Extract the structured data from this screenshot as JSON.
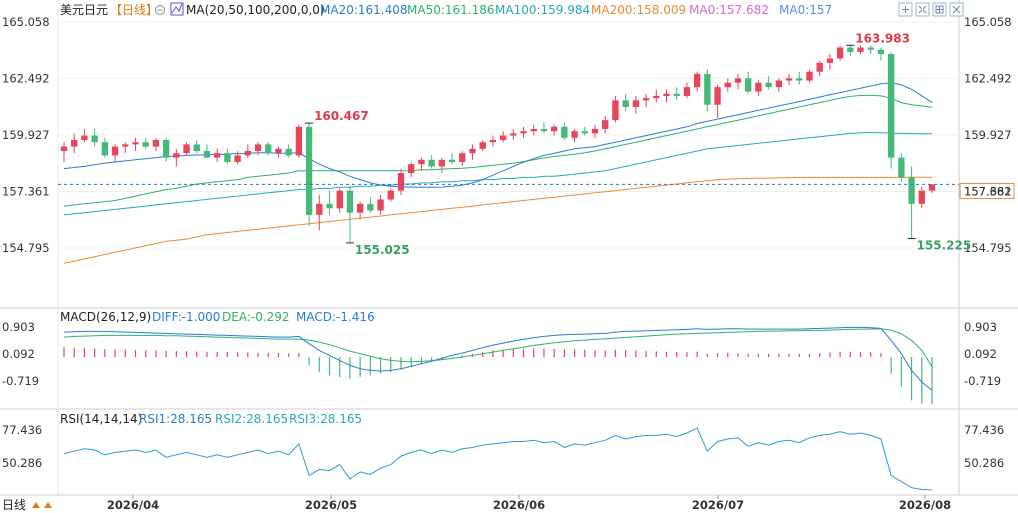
{
  "header": {
    "symbol": "美元日元",
    "period": "【日线】",
    "ma_params": "MA(20,50,100,200,0,0)",
    "ma_values": [
      {
        "label": "MA20:161.408",
        "color": "#2a7bd8"
      },
      {
        "label": "MA50:161.186",
        "color": "#2fb26a"
      },
      {
        "label": "MA100:159.984",
        "color": "#28a9b5"
      },
      {
        "label": "MA200:158.009",
        "color": "#f08a34"
      },
      {
        "label": "MA0:157.682",
        "color": "#d36bd3"
      },
      {
        "label": "MA0:157",
        "color": "#5a8fe0"
      }
    ]
  },
  "toolbar": [
    "expand-icon",
    "shrink-icon",
    "grid-icon",
    "close-icon"
  ],
  "price_axis": {
    "ticks": [
      "165.058",
      "162.492",
      "159.927",
      "157.361",
      "154.795"
    ],
    "current": "157.682"
  },
  "annotations": {
    "high": "163.983",
    "high_left": "160.467",
    "low_left": "155.025",
    "low_right": "155.225"
  },
  "macd": {
    "label": "MACD(26,12,9)",
    "diff": "DIFF:-1.000",
    "dea": "DEA:-0.292",
    "macd": "MACD:-1.416",
    "ticks": [
      "0.903",
      "0.092",
      "-0.719"
    ]
  },
  "rsi": {
    "label": "RSI(14,14,14)",
    "r1": "RSI1:28.165",
    "r2": "RSI2:28.165",
    "r3": "RSI3:28.165",
    "ticks": [
      "77.436",
      "50.286"
    ]
  },
  "x_axis": {
    "labels": [
      "2026/04",
      "2026/05",
      "2026/06",
      "2026/07",
      "2026/08"
    ],
    "period_button": "日线"
  },
  "chart_data": {
    "type": "candlestick",
    "y_range": [
      154.0,
      165.5
    ],
    "candles": [
      [
        159.2,
        159.6,
        158.7,
        159.4
      ],
      [
        159.4,
        160.0,
        159.1,
        159.7
      ],
      [
        159.7,
        160.2,
        159.6,
        159.9
      ],
      [
        159.9,
        160.2,
        159.4,
        159.6
      ],
      [
        159.6,
        159.8,
        158.9,
        159.0
      ],
      [
        159.0,
        159.5,
        158.7,
        159.4
      ],
      [
        159.4,
        159.6,
        159.1,
        159.5
      ],
      [
        159.5,
        159.8,
        159.2,
        159.6
      ],
      [
        159.6,
        159.8,
        159.3,
        159.4
      ],
      [
        159.4,
        159.8,
        159.2,
        159.7
      ],
      [
        159.7,
        159.8,
        158.7,
        158.9
      ],
      [
        158.9,
        159.3,
        158.5,
        159.1
      ],
      [
        159.1,
        159.6,
        159.0,
        159.5
      ],
      [
        159.5,
        159.7,
        159.1,
        159.2
      ],
      [
        159.2,
        159.5,
        158.9,
        158.9
      ],
      [
        158.9,
        159.3,
        158.7,
        159.1
      ],
      [
        159.1,
        159.3,
        158.6,
        158.7
      ],
      [
        158.7,
        159.2,
        158.6,
        159.0
      ],
      [
        159.0,
        159.5,
        158.9,
        159.2
      ],
      [
        159.2,
        159.6,
        159.0,
        159.5
      ],
      [
        159.5,
        159.6,
        159.0,
        159.1
      ],
      [
        159.1,
        159.4,
        158.9,
        159.3
      ],
      [
        159.3,
        159.5,
        158.9,
        159.0
      ],
      [
        159.0,
        160.4,
        158.9,
        160.3
      ],
      [
        160.3,
        160.467,
        155.8,
        156.3
      ],
      [
        156.3,
        157.2,
        155.6,
        156.8
      ],
      [
        156.8,
        157.4,
        156.3,
        156.6
      ],
      [
        156.6,
        157.5,
        156.4,
        157.4
      ],
      [
        157.4,
        157.6,
        155.025,
        156.4
      ],
      [
        156.4,
        156.9,
        156.1,
        156.8
      ],
      [
        156.8,
        157.1,
        156.4,
        156.5
      ],
      [
        156.5,
        157.2,
        156.3,
        157.0
      ],
      [
        157.0,
        157.5,
        156.9,
        157.4
      ],
      [
        157.4,
        158.4,
        157.2,
        158.2
      ],
      [
        158.2,
        158.7,
        158.0,
        158.6
      ],
      [
        158.6,
        158.9,
        158.3,
        158.8
      ],
      [
        158.8,
        159.0,
        158.4,
        158.5
      ],
      [
        158.5,
        158.9,
        158.2,
        158.8
      ],
      [
        158.8,
        159.1,
        158.6,
        158.7
      ],
      [
        158.7,
        159.2,
        158.5,
        159.1
      ],
      [
        159.1,
        159.5,
        158.8,
        159.3
      ],
      [
        159.3,
        159.7,
        159.2,
        159.6
      ],
      [
        159.6,
        159.9,
        159.4,
        159.7
      ],
      [
        159.7,
        160.1,
        159.6,
        159.9
      ],
      [
        159.9,
        160.2,
        159.7,
        160.0
      ],
      [
        160.0,
        160.3,
        159.8,
        160.1
      ],
      [
        160.1,
        160.4,
        159.9,
        160.2
      ],
      [
        160.2,
        160.5,
        160.0,
        160.1
      ],
      [
        160.1,
        160.4,
        159.9,
        160.3
      ],
      [
        160.3,
        160.5,
        159.7,
        159.8
      ],
      [
        159.8,
        160.2,
        159.6,
        160.1
      ],
      [
        160.1,
        160.3,
        159.9,
        160.0
      ],
      [
        160.0,
        160.4,
        159.8,
        160.2
      ],
      [
        160.2,
        160.8,
        160.0,
        160.6
      ],
      [
        160.6,
        161.7,
        160.5,
        161.5
      ],
      [
        161.5,
        161.8,
        161.0,
        161.2
      ],
      [
        161.2,
        161.7,
        160.9,
        161.5
      ],
      [
        161.5,
        161.8,
        161.2,
        161.6
      ],
      [
        161.6,
        162.0,
        161.4,
        161.7
      ],
      [
        161.7,
        162.0,
        161.4,
        161.8
      ],
      [
        161.8,
        162.1,
        161.5,
        161.7
      ],
      [
        161.7,
        162.3,
        161.6,
        162.1
      ],
      [
        162.1,
        162.8,
        161.9,
        162.7
      ],
      [
        162.7,
        162.9,
        161.0,
        161.3
      ],
      [
        161.3,
        162.2,
        160.7,
        162.1
      ],
      [
        162.1,
        162.5,
        161.9,
        162.3
      ],
      [
        162.3,
        162.7,
        162.0,
        162.5
      ],
      [
        162.5,
        162.8,
        161.8,
        161.9
      ],
      [
        161.9,
        162.4,
        161.7,
        162.3
      ],
      [
        162.3,
        162.6,
        162.0,
        162.1
      ],
      [
        162.1,
        162.5,
        161.9,
        162.4
      ],
      [
        162.4,
        162.7,
        162.2,
        162.5
      ],
      [
        162.5,
        162.8,
        162.2,
        162.4
      ],
      [
        162.4,
        162.9,
        162.3,
        162.8
      ],
      [
        162.8,
        163.3,
        162.6,
        163.2
      ],
      [
        163.2,
        163.6,
        162.9,
        163.4
      ],
      [
        163.4,
        163.983,
        163.3,
        163.9
      ],
      [
        163.9,
        164.0,
        163.5,
        163.7
      ],
      [
        163.7,
        164.0,
        163.6,
        163.9
      ],
      [
        163.9,
        164.0,
        163.6,
        163.8
      ],
      [
        163.8,
        163.9,
        163.3,
        163.6
      ],
      [
        163.6,
        163.7,
        158.4,
        158.9
      ],
      [
        158.9,
        159.1,
        157.8,
        158.0
      ],
      [
        158.0,
        158.5,
        155.225,
        156.8
      ],
      [
        156.8,
        157.6,
        156.6,
        157.4
      ],
      [
        157.4,
        157.7,
        157.3,
        157.682
      ]
    ],
    "ma20": [
      158.4,
      158.45,
      158.5,
      158.58,
      158.65,
      158.7,
      158.75,
      158.8,
      158.85,
      158.9,
      158.95,
      158.97,
      159.0,
      159.02,
      159.03,
      159.04,
      159.06,
      159.08,
      159.1,
      159.12,
      159.12,
      159.1,
      159.1,
      159.12,
      158.85,
      158.6,
      158.4,
      158.25,
      158.05,
      157.9,
      157.75,
      157.65,
      157.6,
      157.58,
      157.56,
      157.55,
      157.55,
      157.56,
      157.6,
      157.65,
      157.75,
      157.9,
      158.1,
      158.3,
      158.5,
      158.7,
      158.85,
      159.0,
      159.1,
      159.2,
      159.3,
      159.35,
      159.4,
      159.5,
      159.6,
      159.7,
      159.8,
      159.9,
      160.0,
      160.1,
      160.2,
      160.3,
      160.45,
      160.55,
      160.65,
      160.75,
      160.85,
      160.95,
      161.05,
      161.15,
      161.25,
      161.35,
      161.45,
      161.55,
      161.65,
      161.75,
      161.85,
      161.95,
      162.05,
      162.15,
      162.25,
      162.3,
      162.2,
      162.0,
      161.7,
      161.408
    ],
    "ma50": [
      156.7,
      156.75,
      156.8,
      156.85,
      156.9,
      156.95,
      157.05,
      157.15,
      157.25,
      157.35,
      157.45,
      157.5,
      157.6,
      157.7,
      157.75,
      157.8,
      157.85,
      157.9,
      158.0,
      158.05,
      158.1,
      158.15,
      158.2,
      158.3,
      158.3,
      158.3,
      158.3,
      158.3,
      158.3,
      158.3,
      158.3,
      158.3,
      158.3,
      158.3,
      158.3,
      158.35,
      158.35,
      158.38,
      158.4,
      158.42,
      158.45,
      158.5,
      158.55,
      158.6,
      158.65,
      158.72,
      158.8,
      158.88,
      158.95,
      159.0,
      159.05,
      159.12,
      159.2,
      159.3,
      159.4,
      159.5,
      159.6,
      159.7,
      159.8,
      159.9,
      160.0,
      160.1,
      160.2,
      160.3,
      160.4,
      160.5,
      160.6,
      160.7,
      160.8,
      160.9,
      161.0,
      161.1,
      161.2,
      161.3,
      161.4,
      161.5,
      161.6,
      161.68,
      161.72,
      161.73,
      161.7,
      161.6,
      161.4,
      161.3,
      161.25,
      161.186
    ],
    "ma100": [
      156.3,
      156.35,
      156.4,
      156.45,
      156.5,
      156.55,
      156.6,
      156.65,
      156.7,
      156.75,
      156.8,
      156.85,
      156.9,
      156.95,
      157.0,
      157.05,
      157.1,
      157.15,
      157.2,
      157.25,
      157.3,
      157.35,
      157.4,
      157.45,
      157.45,
      157.5,
      157.5,
      157.55,
      157.55,
      157.6,
      157.6,
      157.65,
      157.65,
      157.7,
      157.7,
      157.75,
      157.75,
      157.8,
      157.8,
      157.85,
      157.85,
      157.9,
      157.9,
      157.95,
      157.95,
      158.0,
      158.0,
      158.05,
      158.05,
      158.1,
      158.15,
      158.2,
      158.25,
      158.3,
      158.4,
      158.5,
      158.6,
      158.7,
      158.8,
      158.9,
      159.0,
      159.1,
      159.2,
      159.3,
      159.35,
      159.4,
      159.45,
      159.5,
      159.55,
      159.6,
      159.65,
      159.7,
      159.75,
      159.8,
      159.85,
      159.9,
      159.95,
      160.0,
      160.02,
      160.04,
      160.03,
      160.01,
      160.0,
      159.99,
      159.985,
      159.984
    ],
    "ma200": [
      154.1,
      154.2,
      154.3,
      154.4,
      154.5,
      154.6,
      154.7,
      154.8,
      154.9,
      155.0,
      155.1,
      155.15,
      155.2,
      155.3,
      155.4,
      155.45,
      155.5,
      155.55,
      155.6,
      155.65,
      155.7,
      155.75,
      155.8,
      155.85,
      155.9,
      155.95,
      156.0,
      156.05,
      156.1,
      156.15,
      156.2,
      156.25,
      156.3,
      156.35,
      156.4,
      156.45,
      156.5,
      156.55,
      156.6,
      156.65,
      156.7,
      156.75,
      156.8,
      156.85,
      156.9,
      156.95,
      157.0,
      157.05,
      157.1,
      157.15,
      157.2,
      157.25,
      157.3,
      157.35,
      157.4,
      157.45,
      157.5,
      157.55,
      157.6,
      157.65,
      157.7,
      157.75,
      157.8,
      157.85,
      157.9,
      157.92,
      157.94,
      157.95,
      157.96,
      157.97,
      157.98,
      157.99,
      158.0,
      158.0,
      158.0,
      158.0,
      158.0,
      158.0,
      158.0,
      158.0,
      158.0,
      158.0,
      158.0,
      158.005,
      158.008,
      158.009
    ],
    "macd_hist": [
      0.3,
      0.28,
      0.27,
      0.25,
      0.24,
      0.23,
      0.22,
      0.21,
      0.2,
      0.2,
      0.19,
      0.18,
      0.18,
      0.17,
      0.16,
      0.15,
      0.15,
      0.14,
      0.14,
      0.13,
      0.13,
      0.12,
      0.11,
      0.12,
      -0.25,
      -0.45,
      -0.55,
      -0.6,
      -0.65,
      -0.6,
      -0.55,
      -0.5,
      -0.45,
      -0.38,
      -0.3,
      -0.22,
      -0.15,
      -0.08,
      -0.02,
      0.05,
      0.1,
      0.15,
      0.2,
      0.22,
      0.24,
      0.25,
      0.26,
      0.26,
      0.25,
      0.24,
      0.23,
      0.22,
      0.21,
      0.2,
      0.22,
      0.21,
      0.2,
      0.18,
      0.17,
      0.16,
      0.15,
      0.15,
      0.16,
      0.1,
      0.12,
      0.13,
      0.12,
      0.1,
      0.1,
      0.1,
      0.1,
      0.1,
      0.1,
      0.1,
      0.12,
      0.14,
      0.16,
      0.16,
      0.15,
      0.14,
      0.12,
      -0.5,
      -0.9,
      -1.3,
      -1.4,
      -1.416
    ],
    "macd_diff": [
      0.75,
      0.76,
      0.77,
      0.77,
      0.77,
      0.76,
      0.75,
      0.74,
      0.73,
      0.72,
      0.71,
      0.7,
      0.69,
      0.68,
      0.67,
      0.66,
      0.65,
      0.64,
      0.63,
      0.62,
      0.61,
      0.6,
      0.6,
      0.62,
      0.4,
      0.2,
      0.05,
      -0.1,
      -0.25,
      -0.35,
      -0.4,
      -0.42,
      -0.4,
      -0.35,
      -0.28,
      -0.2,
      -0.12,
      -0.04,
      0.05,
      0.12,
      0.2,
      0.28,
      0.36,
      0.42,
      0.48,
      0.53,
      0.58,
      0.62,
      0.65,
      0.67,
      0.68,
      0.69,
      0.7,
      0.71,
      0.75,
      0.77,
      0.78,
      0.79,
      0.8,
      0.81,
      0.82,
      0.83,
      0.85,
      0.83,
      0.84,
      0.85,
      0.85,
      0.84,
      0.84,
      0.84,
      0.84,
      0.84,
      0.84,
      0.85,
      0.86,
      0.87,
      0.88,
      0.89,
      0.89,
      0.88,
      0.86,
      0.5,
      0.1,
      -0.4,
      -0.75,
      -1.0
    ],
    "macd_dea": [
      0.6,
      0.62,
      0.63,
      0.64,
      0.65,
      0.65,
      0.65,
      0.65,
      0.65,
      0.65,
      0.64,
      0.64,
      0.63,
      0.62,
      0.61,
      0.6,
      0.59,
      0.58,
      0.57,
      0.56,
      0.55,
      0.54,
      0.54,
      0.54,
      0.51,
      0.45,
      0.37,
      0.28,
      0.18,
      0.1,
      0.02,
      -0.05,
      -0.1,
      -0.13,
      -0.14,
      -0.13,
      -0.11,
      -0.08,
      -0.04,
      0.0,
      0.05,
      0.1,
      0.15,
      0.2,
      0.25,
      0.3,
      0.35,
      0.39,
      0.43,
      0.46,
      0.49,
      0.51,
      0.53,
      0.55,
      0.57,
      0.59,
      0.61,
      0.63,
      0.65,
      0.67,
      0.69,
      0.7,
      0.71,
      0.72,
      0.73,
      0.74,
      0.75,
      0.76,
      0.77,
      0.78,
      0.78,
      0.79,
      0.79,
      0.8,
      0.8,
      0.81,
      0.82,
      0.83,
      0.84,
      0.84,
      0.85,
      0.81,
      0.7,
      0.5,
      0.2,
      -0.292
    ],
    "rsi": [
      58,
      60,
      62,
      61,
      57,
      59,
      60,
      61,
      59,
      61,
      55,
      57,
      59,
      57,
      55,
      57,
      55,
      57,
      59,
      61,
      58,
      60,
      57,
      66,
      40,
      45,
      44,
      49,
      37,
      43,
      41,
      46,
      49,
      56,
      59,
      61,
      58,
      61,
      59,
      62,
      63,
      65,
      66,
      67,
      68,
      68,
      69,
      67,
      68,
      63,
      66,
      65,
      67,
      69,
      73,
      70,
      72,
      73,
      73,
      74,
      72,
      75,
      79,
      60,
      68,
      70,
      71,
      64,
      67,
      65,
      68,
      69,
      67,
      71,
      73,
      74,
      76,
      74,
      75,
      73,
      70,
      40,
      35,
      30,
      28.5,
      28.165
    ],
    "rsi_range": [
      20,
      85
    ]
  }
}
